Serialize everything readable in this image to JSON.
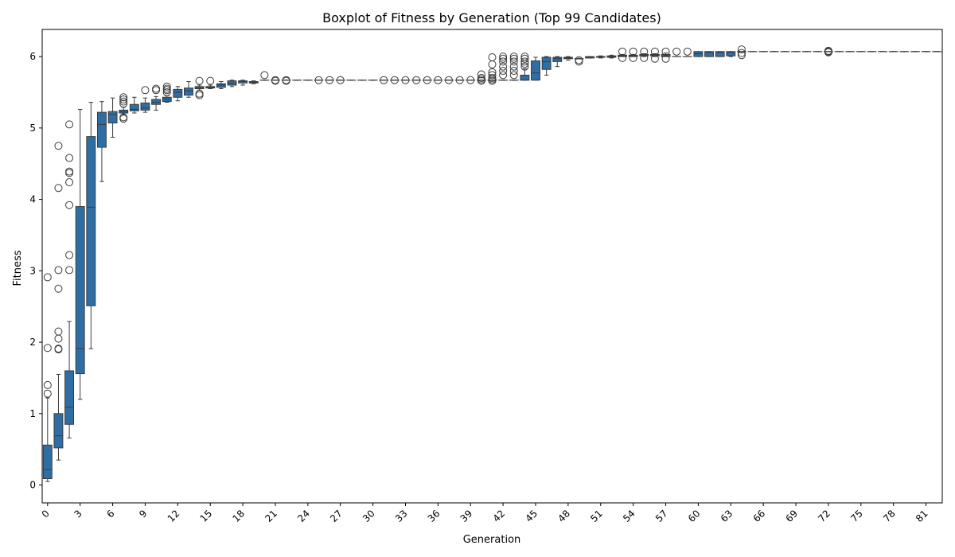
{
  "chart_data": {
    "type": "boxplot",
    "title": "Boxplot of Fitness by Generation (Top 99 Candidates)",
    "xlabel": "Generation",
    "ylabel": "Fitness",
    "ylim": [
      -0.25,
      6.38
    ],
    "yticks": [
      0,
      1,
      2,
      3,
      4,
      5,
      6
    ],
    "xticks": [
      0,
      3,
      6,
      9,
      12,
      15,
      18,
      21,
      24,
      27,
      30,
      33,
      36,
      39,
      42,
      45,
      48,
      51,
      54,
      57,
      60,
      63,
      66,
      69,
      72,
      75,
      78,
      81
    ],
    "box_color": "#2f6ea5",
    "edge_color": "#3b3b3b",
    "grid": false,
    "boxes": [
      {
        "gen": 0,
        "whislo": 0.05,
        "q1": 0.09,
        "med": 0.22,
        "q3": 0.56,
        "whishi": 1.22,
        "fliers": [
          1.28,
          1.4,
          1.92,
          2.91
        ]
      },
      {
        "gen": 1,
        "whislo": 0.35,
        "q1": 0.52,
        "med": 0.69,
        "q3": 1.0,
        "whishi": 1.55,
        "fliers": [
          1.9,
          1.91,
          2.05,
          2.15,
          2.75,
          3.01,
          4.16,
          4.75
        ]
      },
      {
        "gen": 2,
        "whislo": 0.66,
        "q1": 0.85,
        "med": 1.09,
        "q3": 1.6,
        "whishi": 2.29,
        "fliers": [
          3.01,
          3.22,
          3.92,
          4.24,
          4.37,
          4.39,
          4.58,
          5.05
        ]
      },
      {
        "gen": 3,
        "whislo": 1.2,
        "q1": 1.56,
        "med": 1.91,
        "q3": 3.9,
        "whishi": 5.26,
        "fliers": []
      },
      {
        "gen": 4,
        "whislo": 1.91,
        "q1": 2.51,
        "med": 3.89,
        "q3": 4.88,
        "whishi": 5.36,
        "fliers": []
      },
      {
        "gen": 5,
        "whislo": 4.25,
        "q1": 4.73,
        "med": 5.05,
        "q3": 5.22,
        "whishi": 5.37,
        "fliers": []
      },
      {
        "gen": 6,
        "whislo": 4.87,
        "q1": 5.07,
        "med": 5.19,
        "q3": 5.23,
        "whishi": 5.42,
        "fliers": []
      },
      {
        "gen": 7,
        "whislo": 5.19,
        "q1": 5.21,
        "med": 5.23,
        "q3": 5.25,
        "whishi": 5.29,
        "fliers": [
          5.13,
          5.15,
          5.34,
          5.37,
          5.4,
          5.43
        ]
      },
      {
        "gen": 8,
        "whislo": 5.21,
        "q1": 5.24,
        "med": 5.26,
        "q3": 5.33,
        "whishi": 5.43,
        "fliers": []
      },
      {
        "gen": 9,
        "whislo": 5.22,
        "q1": 5.25,
        "med": 5.28,
        "q3": 5.35,
        "whishi": 5.42,
        "fliers": [
          5.53
        ]
      },
      {
        "gen": 10,
        "whislo": 5.25,
        "q1": 5.33,
        "med": 5.36,
        "q3": 5.4,
        "whishi": 5.44,
        "fliers": [
          5.53,
          5.55
        ]
      },
      {
        "gen": 11,
        "whislo": 5.36,
        "q1": 5.37,
        "med": 5.4,
        "q3": 5.43,
        "whishi": 5.45,
        "fliers": [
          5.5,
          5.53,
          5.55,
          5.58
        ]
      },
      {
        "gen": 12,
        "whislo": 5.38,
        "q1": 5.43,
        "med": 5.5,
        "q3": 5.54,
        "whishi": 5.58,
        "fliers": []
      },
      {
        "gen": 13,
        "whislo": 5.43,
        "q1": 5.46,
        "med": 5.52,
        "q3": 5.56,
        "whishi": 5.65,
        "fliers": []
      },
      {
        "gen": 14,
        "whislo": 5.53,
        "q1": 5.55,
        "med": 5.56,
        "q3": 5.58,
        "whishi": 5.6,
        "fliers": [
          5.46,
          5.48,
          5.66
        ]
      },
      {
        "gen": 15,
        "whislo": 5.55,
        "q1": 5.56,
        "med": 5.57,
        "q3": 5.58,
        "whishi": 5.6,
        "fliers": [
          5.66
        ]
      },
      {
        "gen": 16,
        "whislo": 5.55,
        "q1": 5.57,
        "med": 5.6,
        "q3": 5.62,
        "whishi": 5.65,
        "fliers": []
      },
      {
        "gen": 17,
        "whislo": 5.58,
        "q1": 5.6,
        "med": 5.63,
        "q3": 5.66,
        "whishi": 5.67,
        "fliers": []
      },
      {
        "gen": 18,
        "whislo": 5.6,
        "q1": 5.63,
        "med": 5.65,
        "q3": 5.66,
        "whishi": 5.67,
        "fliers": []
      },
      {
        "gen": 19,
        "whislo": 5.62,
        "q1": 5.63,
        "med": 5.64,
        "q3": 5.65,
        "whishi": 5.66,
        "fliers": []
      },
      {
        "gen": 20,
        "whislo": 5.67,
        "q1": 5.67,
        "med": 5.67,
        "q3": 5.67,
        "whishi": 5.67,
        "fliers": [
          5.74
        ]
      },
      {
        "gen": 21,
        "whislo": 5.67,
        "q1": 5.67,
        "med": 5.67,
        "q3": 5.67,
        "whishi": 5.67,
        "fliers": [
          5.66,
          5.67
        ]
      },
      {
        "gen": 22,
        "whislo": 5.67,
        "q1": 5.67,
        "med": 5.67,
        "q3": 5.67,
        "whishi": 5.67,
        "fliers": [
          5.66,
          5.67
        ]
      },
      {
        "gen": 23,
        "whislo": 5.67,
        "q1": 5.67,
        "med": 5.67,
        "q3": 5.67,
        "whishi": 5.67,
        "fliers": []
      },
      {
        "gen": 24,
        "whislo": 5.67,
        "q1": 5.67,
        "med": 5.67,
        "q3": 5.67,
        "whishi": 5.67,
        "fliers": []
      },
      {
        "gen": 25,
        "whislo": 5.67,
        "q1": 5.67,
        "med": 5.67,
        "q3": 5.67,
        "whishi": 5.67,
        "fliers": [
          5.67
        ]
      },
      {
        "gen": 26,
        "whislo": 5.67,
        "q1": 5.67,
        "med": 5.67,
        "q3": 5.67,
        "whishi": 5.67,
        "fliers": [
          5.67
        ]
      },
      {
        "gen": 27,
        "whislo": 5.67,
        "q1": 5.67,
        "med": 5.67,
        "q3": 5.67,
        "whishi": 5.67,
        "fliers": [
          5.67
        ]
      },
      {
        "gen": 28,
        "whislo": 5.67,
        "q1": 5.67,
        "med": 5.67,
        "q3": 5.67,
        "whishi": 5.67,
        "fliers": []
      },
      {
        "gen": 29,
        "whislo": 5.67,
        "q1": 5.67,
        "med": 5.67,
        "q3": 5.67,
        "whishi": 5.67,
        "fliers": []
      },
      {
        "gen": 30,
        "whislo": 5.67,
        "q1": 5.67,
        "med": 5.67,
        "q3": 5.67,
        "whishi": 5.67,
        "fliers": []
      },
      {
        "gen": 31,
        "whislo": 5.67,
        "q1": 5.67,
        "med": 5.67,
        "q3": 5.67,
        "whishi": 5.67,
        "fliers": [
          5.67
        ]
      },
      {
        "gen": 32,
        "whislo": 5.67,
        "q1": 5.67,
        "med": 5.67,
        "q3": 5.67,
        "whishi": 5.67,
        "fliers": [
          5.67
        ]
      },
      {
        "gen": 33,
        "whislo": 5.67,
        "q1": 5.67,
        "med": 5.67,
        "q3": 5.67,
        "whishi": 5.67,
        "fliers": [
          5.67
        ]
      },
      {
        "gen": 34,
        "whislo": 5.67,
        "q1": 5.67,
        "med": 5.67,
        "q3": 5.67,
        "whishi": 5.67,
        "fliers": [
          5.67
        ]
      },
      {
        "gen": 35,
        "whislo": 5.67,
        "q1": 5.67,
        "med": 5.67,
        "q3": 5.67,
        "whishi": 5.67,
        "fliers": [
          5.67
        ]
      },
      {
        "gen": 36,
        "whislo": 5.67,
        "q1": 5.67,
        "med": 5.67,
        "q3": 5.67,
        "whishi": 5.67,
        "fliers": [
          5.67
        ]
      },
      {
        "gen": 37,
        "whislo": 5.67,
        "q1": 5.67,
        "med": 5.67,
        "q3": 5.67,
        "whishi": 5.67,
        "fliers": [
          5.67
        ]
      },
      {
        "gen": 38,
        "whislo": 5.67,
        "q1": 5.67,
        "med": 5.67,
        "q3": 5.67,
        "whishi": 5.67,
        "fliers": [
          5.67
        ]
      },
      {
        "gen": 39,
        "whislo": 5.67,
        "q1": 5.67,
        "med": 5.67,
        "q3": 5.67,
        "whishi": 5.67,
        "fliers": [
          5.67
        ]
      },
      {
        "gen": 40,
        "whislo": 5.67,
        "q1": 5.67,
        "med": 5.67,
        "q3": 5.67,
        "whishi": 5.67,
        "fliers": [
          5.66,
          5.68,
          5.7,
          5.75
        ]
      },
      {
        "gen": 41,
        "whislo": 5.67,
        "q1": 5.67,
        "med": 5.67,
        "q3": 5.67,
        "whishi": 5.67,
        "fliers": [
          5.66,
          5.68,
          5.7,
          5.74,
          5.78,
          5.89,
          5.99
        ]
      },
      {
        "gen": 42,
        "whislo": 5.67,
        "q1": 5.67,
        "med": 5.67,
        "q3": 5.67,
        "whishi": 5.67,
        "fliers": [
          5.74,
          5.8,
          5.86,
          5.93,
          5.97,
          6.0
        ]
      },
      {
        "gen": 43,
        "whislo": 5.67,
        "q1": 5.67,
        "med": 5.67,
        "q3": 5.67,
        "whishi": 5.67,
        "fliers": [
          5.74,
          5.8,
          5.86,
          5.93,
          5.97,
          6.0
        ]
      },
      {
        "gen": 44,
        "whislo": 5.67,
        "q1": 5.67,
        "med": 5.67,
        "q3": 5.74,
        "whishi": 5.83,
        "fliers": [
          5.86,
          5.9,
          5.93,
          5.97,
          6.0
        ]
      },
      {
        "gen": 45,
        "whislo": 5.67,
        "q1": 5.67,
        "med": 5.77,
        "q3": 5.94,
        "whishi": 5.99,
        "fliers": []
      },
      {
        "gen": 46,
        "whislo": 5.74,
        "q1": 5.82,
        "med": 5.93,
        "q3": 5.99,
        "whishi": 6.0,
        "fliers": []
      },
      {
        "gen": 47,
        "whislo": 5.86,
        "q1": 5.93,
        "med": 5.97,
        "q3": 5.99,
        "whishi": 6.0,
        "fliers": []
      },
      {
        "gen": 48,
        "whislo": 5.95,
        "q1": 5.97,
        "med": 5.98,
        "q3": 5.99,
        "whishi": 6.0,
        "fliers": []
      },
      {
        "gen": 49,
        "whislo": 5.97,
        "q1": 5.97,
        "med": 5.97,
        "q3": 5.97,
        "whishi": 5.97,
        "fliers": [
          5.93,
          5.95
        ]
      },
      {
        "gen": 50,
        "whislo": 5.98,
        "q1": 5.98,
        "med": 5.99,
        "q3": 6.0,
        "whishi": 6.0,
        "fliers": []
      },
      {
        "gen": 51,
        "whislo": 5.98,
        "q1": 5.99,
        "med": 6.0,
        "q3": 6.0,
        "whishi": 6.01,
        "fliers": []
      },
      {
        "gen": 52,
        "whislo": 5.98,
        "q1": 5.99,
        "med": 6.0,
        "q3": 6.01,
        "whishi": 6.02,
        "fliers": []
      },
      {
        "gen": 53,
        "whislo": 6.0,
        "q1": 6.0,
        "med": 6.01,
        "q3": 6.02,
        "whishi": 6.03,
        "fliers": [
          5.98,
          6.07
        ]
      },
      {
        "gen": 54,
        "whislo": 6.0,
        "q1": 6.0,
        "med": 6.01,
        "q3": 6.02,
        "whishi": 6.03,
        "fliers": [
          5.98,
          6.07
        ]
      },
      {
        "gen": 55,
        "whislo": 6.0,
        "q1": 6.01,
        "med": 6.02,
        "q3": 6.03,
        "whishi": 6.04,
        "fliers": [
          5.98,
          6.07
        ]
      },
      {
        "gen": 56,
        "whislo": 6.0,
        "q1": 6.01,
        "med": 6.02,
        "q3": 6.03,
        "whishi": 6.04,
        "fliers": [
          5.97,
          6.07
        ]
      },
      {
        "gen": 57,
        "whislo": 6.0,
        "q1": 6.0,
        "med": 6.01,
        "q3": 6.03,
        "whishi": 6.05,
        "fliers": [
          5.97,
          6.07
        ]
      },
      {
        "gen": 58,
        "whislo": 6.0,
        "q1": 6.0,
        "med": 6.0,
        "q3": 6.0,
        "whishi": 6.0,
        "fliers": [
          6.07
        ]
      },
      {
        "gen": 59,
        "whislo": 6.0,
        "q1": 6.0,
        "med": 6.0,
        "q3": 6.0,
        "whishi": 6.0,
        "fliers": [
          6.07
        ]
      },
      {
        "gen": 60,
        "whislo": 6.0,
        "q1": 6.0,
        "med": 6.04,
        "q3": 6.07,
        "whishi": 6.07,
        "fliers": []
      },
      {
        "gen": 61,
        "whislo": 6.0,
        "q1": 6.0,
        "med": 6.06,
        "q3": 6.07,
        "whishi": 6.07,
        "fliers": []
      },
      {
        "gen": 62,
        "whislo": 6.0,
        "q1": 6.0,
        "med": 6.06,
        "q3": 6.07,
        "whishi": 6.07,
        "fliers": []
      },
      {
        "gen": 63,
        "whislo": 6.0,
        "q1": 6.01,
        "med": 6.06,
        "q3": 6.07,
        "whishi": 6.07,
        "fliers": []
      },
      {
        "gen": 64,
        "whislo": 6.07,
        "q1": 6.07,
        "med": 6.07,
        "q3": 6.07,
        "whishi": 6.07,
        "fliers": [
          6.02,
          6.05,
          6.1
        ]
      },
      {
        "gen": 65,
        "whislo": 6.07,
        "q1": 6.07,
        "med": 6.07,
        "q3": 6.07,
        "whishi": 6.07,
        "fliers": []
      },
      {
        "gen": 66,
        "whislo": 6.07,
        "q1": 6.07,
        "med": 6.07,
        "q3": 6.07,
        "whishi": 6.07,
        "fliers": []
      },
      {
        "gen": 67,
        "whislo": 6.07,
        "q1": 6.07,
        "med": 6.07,
        "q3": 6.07,
        "whishi": 6.07,
        "fliers": []
      },
      {
        "gen": 68,
        "whislo": 6.07,
        "q1": 6.07,
        "med": 6.07,
        "q3": 6.07,
        "whishi": 6.07,
        "fliers": []
      },
      {
        "gen": 69,
        "whislo": 6.07,
        "q1": 6.07,
        "med": 6.07,
        "q3": 6.07,
        "whishi": 6.07,
        "fliers": []
      },
      {
        "gen": 70,
        "whislo": 6.07,
        "q1": 6.07,
        "med": 6.07,
        "q3": 6.07,
        "whishi": 6.07,
        "fliers": []
      },
      {
        "gen": 71,
        "whislo": 6.07,
        "q1": 6.07,
        "med": 6.07,
        "q3": 6.07,
        "whishi": 6.07,
        "fliers": []
      },
      {
        "gen": 72,
        "whislo": 6.07,
        "q1": 6.07,
        "med": 6.07,
        "q3": 6.07,
        "whishi": 6.07,
        "fliers": [
          6.06,
          6.07,
          6.08
        ]
      },
      {
        "gen": 73,
        "whislo": 6.07,
        "q1": 6.07,
        "med": 6.07,
        "q3": 6.07,
        "whishi": 6.07,
        "fliers": []
      },
      {
        "gen": 74,
        "whislo": 6.07,
        "q1": 6.07,
        "med": 6.07,
        "q3": 6.07,
        "whishi": 6.07,
        "fliers": []
      },
      {
        "gen": 75,
        "whislo": 6.07,
        "q1": 6.07,
        "med": 6.07,
        "q3": 6.07,
        "whishi": 6.07,
        "fliers": []
      },
      {
        "gen": 76,
        "whislo": 6.07,
        "q1": 6.07,
        "med": 6.07,
        "q3": 6.07,
        "whishi": 6.07,
        "fliers": []
      },
      {
        "gen": 77,
        "whislo": 6.07,
        "q1": 6.07,
        "med": 6.07,
        "q3": 6.07,
        "whishi": 6.07,
        "fliers": []
      },
      {
        "gen": 78,
        "whislo": 6.07,
        "q1": 6.07,
        "med": 6.07,
        "q3": 6.07,
        "whishi": 6.07,
        "fliers": []
      },
      {
        "gen": 79,
        "whislo": 6.07,
        "q1": 6.07,
        "med": 6.07,
        "q3": 6.07,
        "whishi": 6.07,
        "fliers": []
      },
      {
        "gen": 80,
        "whislo": 6.07,
        "q1": 6.07,
        "med": 6.07,
        "q3": 6.07,
        "whishi": 6.07,
        "fliers": []
      },
      {
        "gen": 81,
        "whislo": 6.07,
        "q1": 6.07,
        "med": 6.07,
        "q3": 6.07,
        "whishi": 6.07,
        "fliers": []
      },
      {
        "gen": 82,
        "whislo": 6.07,
        "q1": 6.07,
        "med": 6.07,
        "q3": 6.07,
        "whishi": 6.07,
        "fliers": []
      }
    ]
  }
}
